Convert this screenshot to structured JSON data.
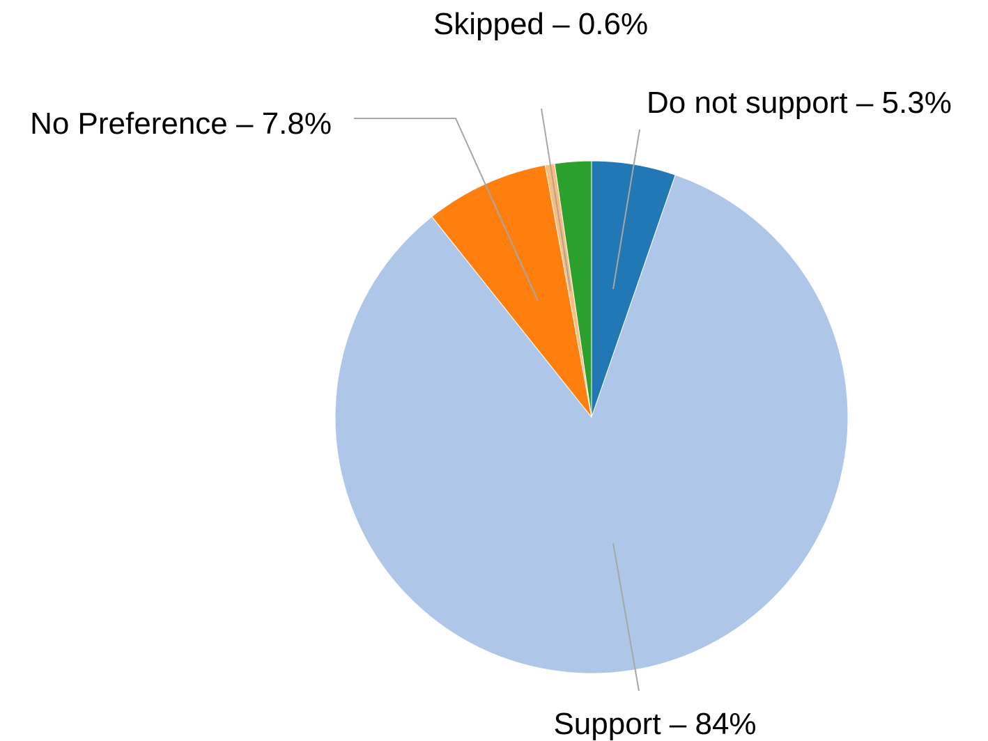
{
  "chart_data": {
    "type": "pie",
    "title": "",
    "start_angle_deg": 0,
    "direction": "clockwise",
    "slices": [
      {
        "name": "Do not support",
        "value": 5.3,
        "color": "#2278b5",
        "label": "Do not support – 5.3%"
      },
      {
        "name": "Support",
        "value": 84,
        "color": "#aec7e8",
        "label": "Support – 84%"
      },
      {
        "name": "No Preference",
        "value": 7.8,
        "color": "#ff7f0e",
        "label": "No Preference – 7.8%"
      },
      {
        "name": "Skipped",
        "value": 0.6,
        "color": "#ffbb78",
        "label": "Skipped – 0.6%"
      },
      {
        "name": "",
        "value": 2.3,
        "color": "#2ca02c",
        "label": ""
      }
    ],
    "legend": "none",
    "data_labels": "outside with leader lines"
  }
}
